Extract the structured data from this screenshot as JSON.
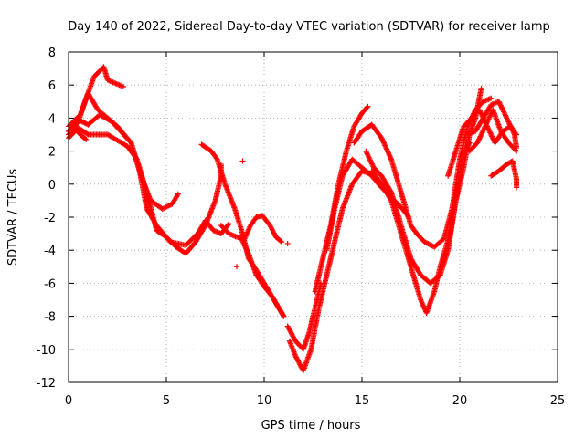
{
  "chart_data": {
    "type": "scatter",
    "title": "Day 140 of 2022, Sidereal Day-to-day VTEC variation (SDTVAR) for receiver lamp",
    "xlabel": "GPS time / hours",
    "ylabel": "SDTVAR / TECUs",
    "xlim": [
      0,
      25
    ],
    "ylim": [
      -12,
      8
    ],
    "xticks": [
      0,
      5,
      10,
      15,
      20,
      25
    ],
    "yticks": [
      -12,
      -10,
      -8,
      -6,
      -4,
      -2,
      0,
      2,
      4,
      6,
      8
    ],
    "grid": true,
    "marker": "+",
    "color": "#ff0000",
    "series": [
      {
        "name": "trace-1",
        "points": [
          [
            0,
            3.0
          ],
          [
            0.5,
            3.8
          ],
          [
            0.9,
            5.2
          ],
          [
            1.3,
            6.5
          ],
          [
            1.8,
            7.1
          ],
          [
            2.0,
            6.3
          ],
          [
            2.4,
            6.1
          ],
          [
            2.8,
            5.9
          ]
        ]
      },
      {
        "name": "trace-2",
        "points": [
          [
            0,
            3.5
          ],
          [
            0.6,
            4.2
          ],
          [
            1.0,
            5.5
          ],
          [
            1.5,
            4.5
          ],
          [
            2.5,
            3.5
          ],
          [
            3.2,
            2.5
          ],
          [
            3.7,
            0.5
          ],
          [
            4.2,
            -1.0
          ],
          [
            4.8,
            -1.5
          ],
          [
            5.3,
            -1.2
          ],
          [
            5.6,
            -0.6
          ]
        ]
      },
      {
        "name": "trace-3",
        "points": [
          [
            0,
            3.2
          ],
          [
            0.5,
            3.9
          ],
          [
            1.0,
            3.6
          ],
          [
            1.6,
            4.2
          ],
          [
            2.2,
            3.8
          ],
          [
            3.2,
            2.5
          ],
          [
            3.6,
            1.0
          ],
          [
            4.0,
            -1.5
          ],
          [
            4.5,
            -2.5
          ],
          [
            5.2,
            -3.5
          ],
          [
            6.0,
            -3.7
          ],
          [
            6.6,
            -3.0
          ],
          [
            7.0,
            -2.2
          ],
          [
            7.4,
            -2.8
          ],
          [
            7.8,
            -3.0
          ],
          [
            8.2,
            -2.4
          ]
        ]
      },
      {
        "name": "trace-4",
        "points": [
          [
            0,
            2.8
          ],
          [
            0.5,
            3.4
          ],
          [
            1.0,
            3.0
          ],
          [
            2.0,
            3.0
          ],
          [
            3.0,
            2.3
          ],
          [
            3.5,
            1.5
          ],
          [
            4.0,
            -0.5
          ],
          [
            4.5,
            -2.8
          ],
          [
            5.0,
            -3.2
          ],
          [
            5.5,
            -3.8
          ],
          [
            6.0,
            -4.2
          ],
          [
            6.5,
            -3.5
          ],
          [
            7.0,
            -2.5
          ],
          [
            7.5,
            -1.0
          ],
          [
            7.8,
            0.5
          ],
          [
            7.8,
            1.2
          ]
        ]
      },
      {
        "name": "trace-5",
        "points": [
          [
            0.2,
            3.5
          ],
          [
            0.6,
            3.0
          ],
          [
            0.9,
            2.7
          ]
        ]
      },
      {
        "name": "trace-6",
        "points": [
          [
            6.8,
            2.4
          ],
          [
            7.3,
            2.0
          ],
          [
            7.6,
            1.5
          ],
          [
            8.0,
            0.0
          ],
          [
            8.5,
            -1.5
          ],
          [
            8.9,
            -3.0
          ],
          [
            9.2,
            -4.5
          ],
          [
            9.6,
            -5.2
          ],
          [
            10.0,
            -6.0
          ],
          [
            10.5,
            -7.0
          ],
          [
            11.0,
            -8.0
          ]
        ]
      },
      {
        "name": "trace-7",
        "points": [
          [
            7.8,
            -2.5
          ],
          [
            8.2,
            -3.0
          ],
          [
            8.6,
            -3.2
          ],
          [
            9.0,
            -3.3
          ],
          [
            9.3,
            -2.5
          ],
          [
            9.6,
            -2.0
          ],
          [
            9.9,
            -1.9
          ],
          [
            10.3,
            -2.5
          ],
          [
            10.6,
            -3.2
          ],
          [
            10.9,
            -3.5
          ]
        ]
      },
      {
        "name": "trace-8",
        "points": [
          [
            8.8,
            -3.2
          ],
          [
            9.2,
            -4.2
          ],
          [
            9.6,
            -5.5
          ],
          [
            10.0,
            -6.2
          ],
          [
            10.4,
            -6.8
          ],
          [
            10.8,
            -7.6
          ],
          [
            11.0,
            -8.0
          ]
        ]
      },
      {
        "name": "trace-9",
        "points": [
          [
            11.2,
            -8.6
          ],
          [
            11.6,
            -9.5
          ],
          [
            12.0,
            -10.0
          ],
          [
            12.3,
            -9.0
          ],
          [
            12.6,
            -7.5
          ],
          [
            12.9,
            -6.0
          ]
        ]
      },
      {
        "name": "trace-10",
        "points": [
          [
            11.3,
            -9.5
          ],
          [
            11.6,
            -10.4
          ],
          [
            12.0,
            -11.3
          ],
          [
            12.4,
            -10.0
          ],
          [
            12.8,
            -7.5
          ],
          [
            13.2,
            -5.5
          ],
          [
            13.6,
            -3.5
          ],
          [
            14.0,
            -1.5
          ],
          [
            14.5,
            0.0
          ],
          [
            15.0,
            0.8
          ],
          [
            15.5,
            0.6
          ],
          [
            16.0,
            0.0
          ]
        ]
      },
      {
        "name": "trace-11",
        "points": [
          [
            12.6,
            -6.5
          ],
          [
            13.0,
            -4.5
          ],
          [
            13.4,
            -2.5
          ],
          [
            13.8,
            0.0
          ],
          [
            14.2,
            2.0
          ],
          [
            14.6,
            3.5
          ],
          [
            15.0,
            4.3
          ],
          [
            15.3,
            4.7
          ]
        ]
      },
      {
        "name": "trace-12",
        "points": [
          [
            13.2,
            -4.0
          ],
          [
            13.6,
            -1.5
          ],
          [
            14.0,
            0.5
          ],
          [
            14.5,
            1.5
          ],
          [
            15.0,
            1.0
          ],
          [
            15.5,
            0.5
          ],
          [
            16.0,
            -0.2
          ],
          [
            16.5,
            -0.8
          ],
          [
            17.0,
            -1.4
          ],
          [
            17.4,
            -2.0
          ]
        ]
      },
      {
        "name": "trace-13",
        "points": [
          [
            14.6,
            2.5
          ],
          [
            15.0,
            3.2
          ],
          [
            15.5,
            3.6
          ],
          [
            16.0,
            2.8
          ],
          [
            16.5,
            1.5
          ],
          [
            17.0,
            -0.5
          ],
          [
            17.5,
            -2.5
          ],
          [
            17.8,
            -3.0
          ],
          [
            18.2,
            -3.5
          ],
          [
            18.7,
            -3.8
          ],
          [
            19.2,
            -3.3
          ],
          [
            19.6,
            -1.5
          ],
          [
            20.0,
            1.5
          ],
          [
            20.4,
            3.5
          ],
          [
            20.8,
            4.5
          ],
          [
            21.2,
            5.0
          ],
          [
            21.6,
            5.2
          ]
        ]
      },
      {
        "name": "trace-14",
        "points": [
          [
            15.2,
            2.0
          ],
          [
            15.6,
            1.0
          ],
          [
            16.0,
            0.5
          ],
          [
            16.5,
            -0.5
          ],
          [
            17.0,
            -2.5
          ],
          [
            17.5,
            -4.5
          ],
          [
            18.0,
            -5.5
          ],
          [
            18.5,
            -6.0
          ],
          [
            19.0,
            -5.5
          ],
          [
            19.4,
            -4.0
          ],
          [
            19.8,
            -1.0
          ],
          [
            20.1,
            1.5
          ],
          [
            20.5,
            2.5
          ]
        ]
      },
      {
        "name": "trace-15",
        "points": [
          [
            15.5,
            0.8
          ],
          [
            16.0,
            0.0
          ],
          [
            16.5,
            -1.0
          ],
          [
            17.0,
            -3.0
          ],
          [
            17.5,
            -5.0
          ],
          [
            18.0,
            -7.0
          ],
          [
            18.3,
            -7.8
          ],
          [
            18.7,
            -6.5
          ],
          [
            19.0,
            -5.0
          ],
          [
            19.5,
            -3.0
          ],
          [
            19.8,
            -1.0
          ],
          [
            20.2,
            1.0
          ],
          [
            20.5,
            3.0
          ],
          [
            20.8,
            4.0
          ],
          [
            21.1,
            5.8
          ]
        ]
      },
      {
        "name": "trace-16",
        "points": [
          [
            19.4,
            0.5
          ],
          [
            19.8,
            2.0
          ],
          [
            20.2,
            3.5
          ],
          [
            20.6,
            4.0
          ],
          [
            21.0,
            4.5
          ],
          [
            21.4,
            3.5
          ],
          [
            21.8,
            2.5
          ],
          [
            22.2,
            3.2
          ],
          [
            22.6,
            3.5
          ],
          [
            22.9,
            3.0
          ]
        ]
      },
      {
        "name": "trace-17",
        "points": [
          [
            20.4,
            3.0
          ],
          [
            20.8,
            3.2
          ],
          [
            21.2,
            4.0
          ],
          [
            21.6,
            4.8
          ],
          [
            22.0,
            5.0
          ],
          [
            22.4,
            4.0
          ],
          [
            22.8,
            3.0
          ],
          [
            22.9,
            2.2
          ]
        ]
      },
      {
        "name": "trace-18",
        "points": [
          [
            20.5,
            2.0
          ],
          [
            20.9,
            2.5
          ],
          [
            21.3,
            3.5
          ],
          [
            21.7,
            4.5
          ],
          [
            22.1,
            3.2
          ],
          [
            22.5,
            2.5
          ],
          [
            22.9,
            2.0
          ]
        ]
      },
      {
        "name": "trace-19",
        "points": [
          [
            21.6,
            0.5
          ],
          [
            22.0,
            0.8
          ],
          [
            22.4,
            1.2
          ],
          [
            22.7,
            1.4
          ],
          [
            22.9,
            0.3
          ],
          [
            22.9,
            -0.2
          ]
        ]
      },
      {
        "name": "trace-20",
        "points": [
          [
            8.9,
            1.4
          ],
          [
            11.2,
            -3.6
          ],
          [
            8.6,
            -5.0
          ]
        ]
      }
    ]
  }
}
